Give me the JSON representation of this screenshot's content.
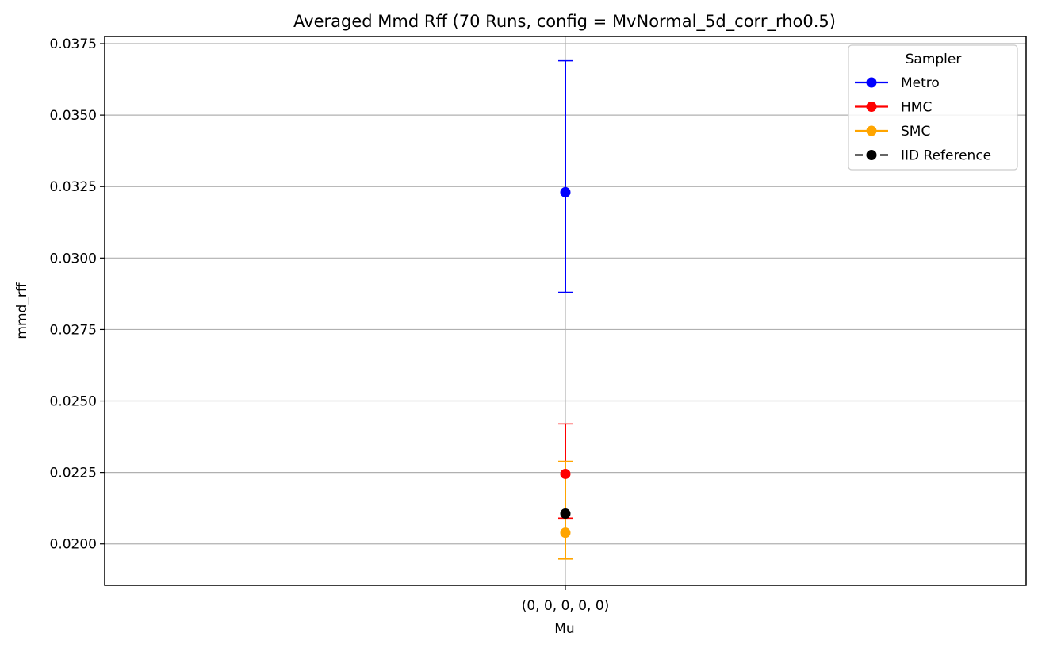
{
  "chart_data": {
    "type": "errorbar",
    "title": "Averaged Mmd Rff (70 Runs, config = MvNormal_5d_corr_rho0.5)",
    "xlabel": "Mu",
    "ylabel": "mmd_rff",
    "categories": [
      "(0, 0, 0, 0, 0)"
    ],
    "ylim": [
      0.01855,
      0.03775
    ],
    "yticks": [
      "0.0200",
      "0.0225",
      "0.0250",
      "0.0275",
      "0.0300",
      "0.0325",
      "0.0350",
      "0.0375"
    ],
    "ytick_values": [
      0.02,
      0.0225,
      0.025,
      0.0275,
      0.03,
      0.0325,
      0.035,
      0.0375
    ],
    "grid": true,
    "legend": {
      "title": "Sampler",
      "position": "top-right"
    },
    "series": [
      {
        "name": "Metro",
        "color": "#0000ff",
        "values": [
          0.0323
        ],
        "err_low": [
          0.0288
        ],
        "err_high": [
          0.0369
        ],
        "dashed": false
      },
      {
        "name": "HMC",
        "color": "#ff0000",
        "values": [
          0.02245
        ],
        "err_low": [
          0.0209
        ],
        "err_high": [
          0.0242
        ],
        "dashed": false
      },
      {
        "name": "SMC",
        "color": "#ffa500",
        "values": [
          0.02039
        ],
        "err_low": [
          0.01947
        ],
        "err_high": [
          0.02289
        ],
        "dashed": false
      },
      {
        "name": "IID Reference",
        "color": "#000000",
        "values": [
          0.02106
        ],
        "err_low": [],
        "err_high": [],
        "dashed": true
      }
    ]
  }
}
